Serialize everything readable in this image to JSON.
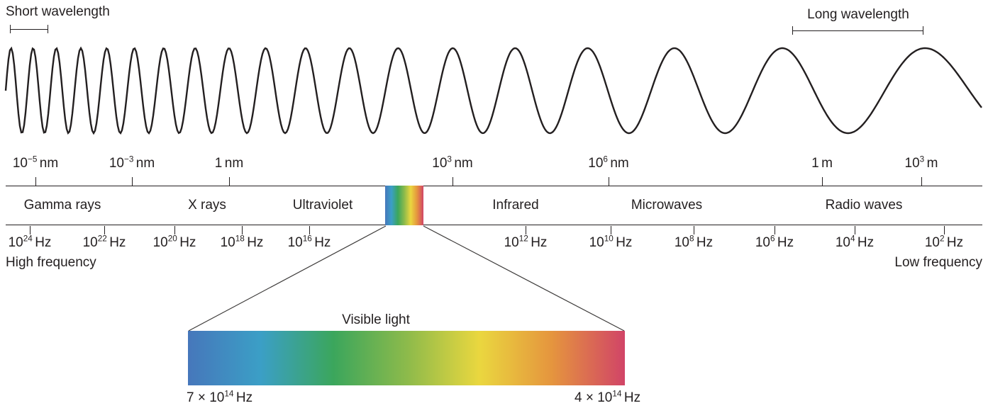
{
  "labels": {
    "short_wavelength": "Short wavelength",
    "long_wavelength": "Long wavelength",
    "high_frequency": "High frequency",
    "low_frequency": "Low frequency",
    "visible_light": "Visible light"
  },
  "wavelength_scale": [
    {
      "base": "10",
      "exp": "−5",
      "unit": "nm"
    },
    {
      "base": "10",
      "exp": "−3",
      "unit": "nm"
    },
    {
      "base": "1",
      "exp": "",
      "unit": "nm"
    },
    {
      "base": "10",
      "exp": "3",
      "unit": "nm"
    },
    {
      "base": "10",
      "exp": "6",
      "unit": "nm"
    },
    {
      "base": "1",
      "exp": "",
      "unit": "m"
    },
    {
      "base": "10",
      "exp": "3",
      "unit": "m"
    }
  ],
  "regions": [
    {
      "name": "Gamma rays"
    },
    {
      "name": "X rays"
    },
    {
      "name": "Ultraviolet"
    },
    {
      "name": "Infrared"
    },
    {
      "name": "Microwaves"
    },
    {
      "name": "Radio waves"
    }
  ],
  "frequency_scale": [
    {
      "base": "10",
      "exp": "24",
      "unit": "Hz"
    },
    {
      "base": "10",
      "exp": "22",
      "unit": "Hz"
    },
    {
      "base": "10",
      "exp": "20",
      "unit": "Hz"
    },
    {
      "base": "10",
      "exp": "18",
      "unit": "Hz"
    },
    {
      "base": "10",
      "exp": "16",
      "unit": "Hz"
    },
    {
      "base": "10",
      "exp": "12",
      "unit": "Hz"
    },
    {
      "base": "10",
      "exp": "10",
      "unit": "Hz"
    },
    {
      "base": "10",
      "exp": "8",
      "unit": "Hz"
    },
    {
      "base": "10",
      "exp": "6",
      "unit": "Hz"
    },
    {
      "base": "10",
      "exp": "4",
      "unit": "Hz"
    },
    {
      "base": "10",
      "exp": "2",
      "unit": "Hz"
    }
  ],
  "visible_detail": {
    "left_frequency": {
      "prefix": "7 × 10",
      "exp": "14",
      "unit": "Hz"
    },
    "right_frequency": {
      "prefix": "4 × 10",
      "exp": "14",
      "unit": "Hz"
    }
  },
  "colors": {
    "line": "#231f20",
    "spectrum_gradient": [
      "#4677bb",
      "#3b9fc6",
      "#3ba65c",
      "#8cba4b",
      "#ead73f",
      "#e5953e",
      "#d14467"
    ]
  }
}
